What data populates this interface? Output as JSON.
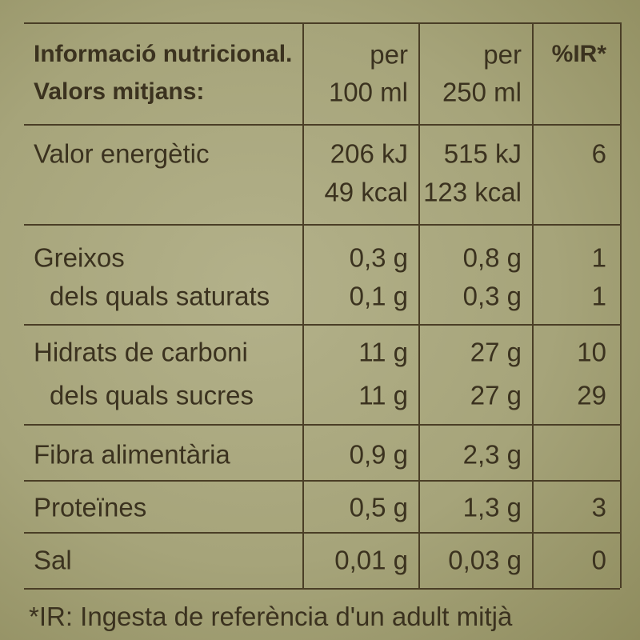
{
  "table": {
    "header": {
      "lines": [
        [
          "Informació nutricional.",
          "per",
          "per",
          "%IR*"
        ],
        [
          "Valors mitjans:",
          "100 ml",
          "250 ml",
          null
        ]
      ]
    },
    "rows": [
      {
        "lines": [
          [
            "Valor energètic",
            "206 kJ",
            "515 kJ",
            "6"
          ],
          [
            null,
            "49 kcal",
            "123 kcal",
            null
          ]
        ]
      },
      {
        "lines": [
          [
            "Greixos",
            "0,3 g",
            "0,8 g",
            "1"
          ],
          [
            "dels quals saturats",
            "0,1 g",
            "0,3 g",
            "1"
          ]
        ]
      },
      {
        "lines": [
          [
            "Hidrats de carboni",
            "11 g",
            "27 g",
            "10"
          ],
          [
            "dels quals sucres",
            "11 g",
            "27 g",
            "29"
          ]
        ]
      },
      {
        "lines": [
          [
            "Fibra alimentària",
            "0,9 g",
            "2,3 g",
            null
          ]
        ]
      },
      {
        "lines": [
          [
            "Proteïnes",
            "0,5 g",
            "1,3 g",
            "3"
          ]
        ]
      },
      {
        "lines": [
          [
            "Sal",
            "0,01 g",
            "0,03 g",
            "0"
          ]
        ]
      }
    ]
  },
  "footnote": "*IR: Ingesta de referència d'un adult mitjà"
}
